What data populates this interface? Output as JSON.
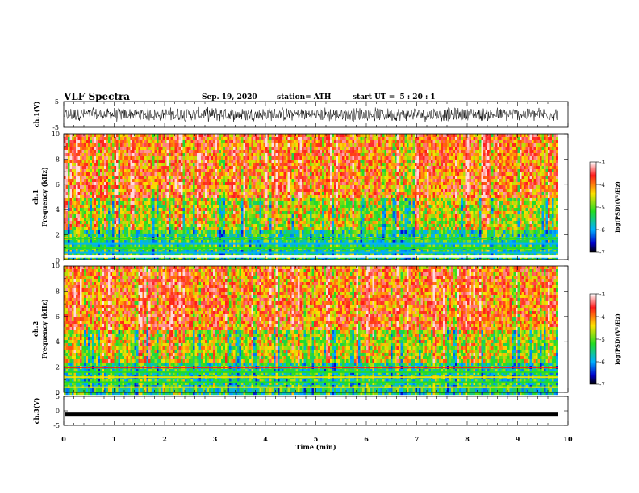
{
  "header": {
    "title": "VLF Spectra",
    "date": "Sep. 19, 2020",
    "station_label": "station=",
    "station": "ATH",
    "start_label": "start UT =",
    "start_time": "5 : 20 : 1"
  },
  "chart_data": [
    {
      "type": "line",
      "name": "ch1-waveform",
      "ylabel": "ch.1(V)",
      "ylim": [
        -5,
        5
      ],
      "yticks": [
        "5",
        "-5"
      ],
      "xlim": [
        0,
        10
      ],
      "description_points": "noisy broadband signal roughly between -3 and 3 V over 0-9.8 min"
    },
    {
      "type": "heatmap",
      "name": "ch1-spectrogram",
      "ylabel": "ch.1 Frequency (kHz)",
      "ylim": [
        0,
        10
      ],
      "yticks": [
        "0",
        "2",
        "4",
        "6",
        "8",
        "10"
      ],
      "xlim": [
        0,
        10
      ],
      "data_end_min": 9.8,
      "colorbar": {
        "label": "log(PSD)(V²/Hz)",
        "range": [
          -7,
          -3
        ],
        "ticks": [
          "-3",
          "-4",
          "-5",
          "-6",
          "-7"
        ]
      }
    },
    {
      "type": "heatmap",
      "name": "ch2-spectrogram",
      "ylabel": "ch.2 Frequency (kHz)",
      "ylim": [
        0,
        10
      ],
      "yticks": [
        "0",
        "2",
        "4",
        "6",
        "8",
        "10"
      ],
      "xlim": [
        0,
        10
      ],
      "data_end_min": 9.8,
      "colorbar": {
        "label": "log(PSD)(V²/Hz)",
        "range": [
          -7,
          -3
        ],
        "ticks": [
          "-3",
          "-4",
          "-5",
          "-6",
          "-7"
        ]
      }
    },
    {
      "type": "line",
      "name": "ch3-waveform",
      "ylabel": "ch.3(V)",
      "ylim": [
        -5,
        5
      ],
      "yticks": [
        "5",
        "0",
        "-5"
      ],
      "xlim": [
        0,
        10
      ],
      "xlabel": "Time (min)",
      "xticks": [
        "0",
        "1",
        "2",
        "3",
        "4",
        "5",
        "6",
        "7",
        "8",
        "9",
        "10"
      ],
      "level_v": -1.3
    }
  ]
}
